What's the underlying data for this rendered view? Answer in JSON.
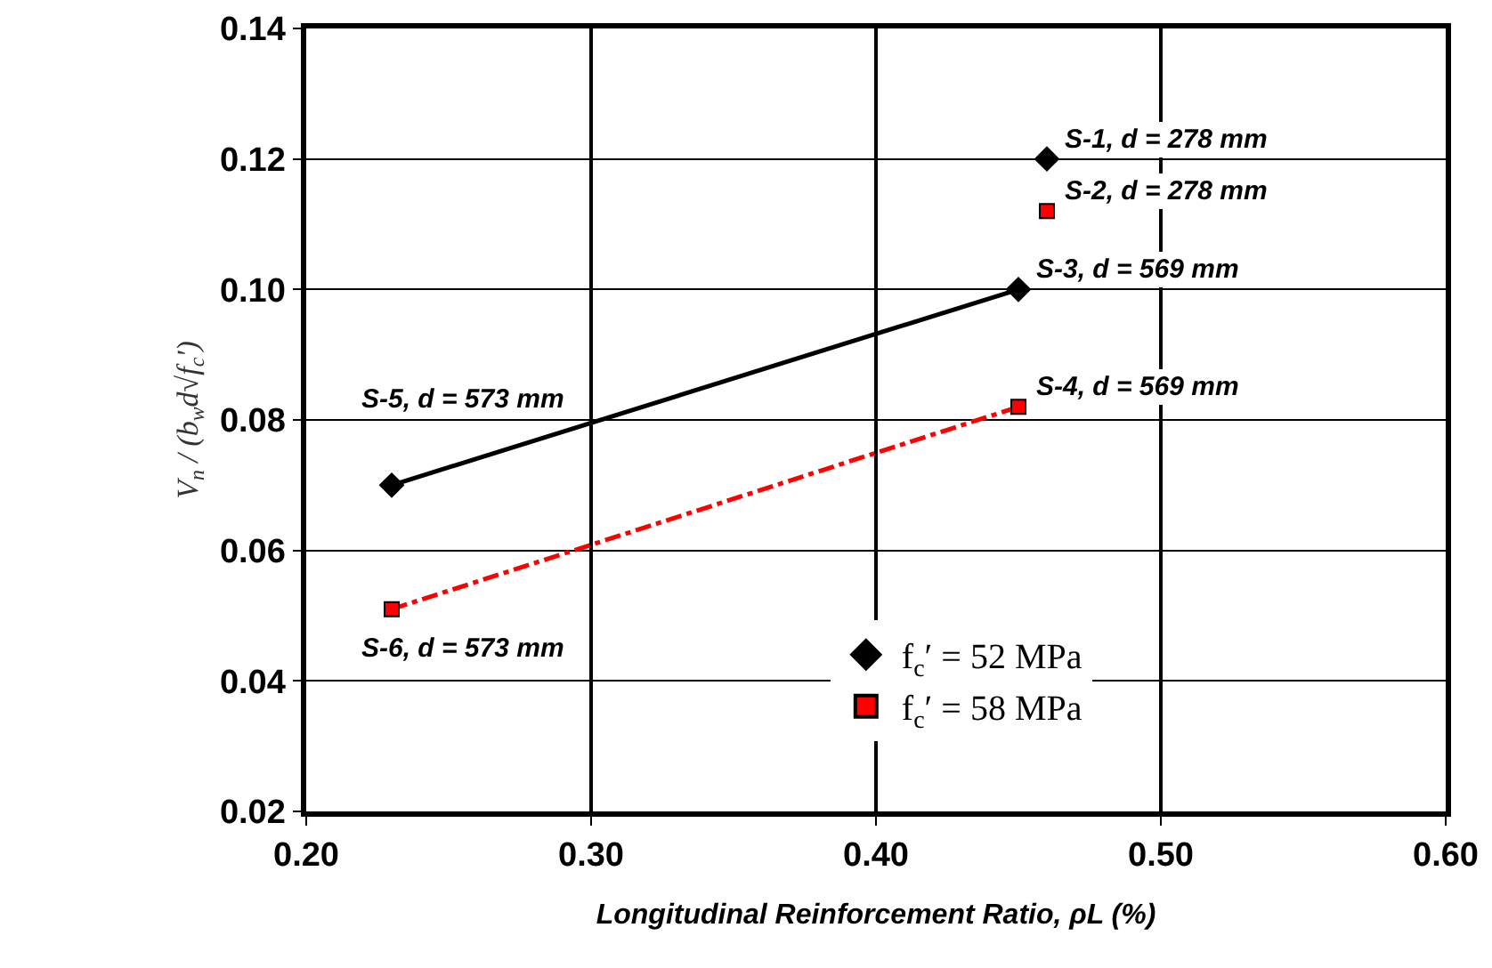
{
  "chart_data": {
    "type": "scatter",
    "xlabel": "Longitudinal Reinforcement Ratio, ρL (%)",
    "ylabel": "V$_{n}$ / (b$_{w}$d√f$_{c}$')",
    "xlim": [
      0.2,
      0.6
    ],
    "xticks": [
      {
        "value": 0.2,
        "label": "0.20"
      },
      {
        "value": 0.3,
        "label": "0.30"
      },
      {
        "value": 0.4,
        "label": "0.40"
      },
      {
        "value": 0.5,
        "label": "0.50"
      },
      {
        "value": 0.6,
        "label": "0.60"
      }
    ],
    "ylim": [
      0.02,
      0.14
    ],
    "yticks": [
      {
        "value": 0.02,
        "label": "0.02"
      },
      {
        "value": 0.04,
        "label": "0.04"
      },
      {
        "value": 0.06,
        "label": "0.06"
      },
      {
        "value": 0.08,
        "label": "0.08"
      },
      {
        "value": 0.1,
        "label": "0.10"
      },
      {
        "value": 0.12,
        "label": "0.12"
      },
      {
        "value": 0.14,
        "label": "0.14"
      }
    ],
    "grid": true,
    "legend": "bottom",
    "series": [
      {
        "type": "line",
        "x": [
          0.23,
          0.45
        ],
        "values": [
          0.07,
          0.1
        ],
        "color": "#000000",
        "line_style": "solid",
        "marker": "none"
      },
      {
        "type": "line",
        "x": [
          0.23,
          0.45
        ],
        "values": [
          0.051,
          0.082
        ],
        "color": "#ff0000",
        "line_style": "dashed",
        "marker": "none"
      },
      {
        "name": "f$_{c}$′ = 52 MPa",
        "x": [
          0.23,
          0.45,
          0.46
        ],
        "values": [
          0.07,
          0.1,
          0.12
        ],
        "color": "#000000",
        "marker": "diamond"
      },
      {
        "name": "f$_{c}$′ = 58 MPa",
        "x": [
          0.23,
          0.45,
          0.46
        ],
        "values": [
          0.051,
          0.082,
          0.112
        ],
        "color": "#ff0000",
        "marker": "square"
      }
    ],
    "annotations": [
      {
        "text": "S-1, d = 278 mm",
        "x": 0.46,
        "y": 0.12
      },
      {
        "text": "S-2, d = 278 mm",
        "x": 0.46,
        "y": 0.112
      },
      {
        "text": "S-3, d = 569 mm",
        "x": 0.45,
        "y": 0.1
      },
      {
        "text": "S-4, d = 569 mm",
        "x": 0.45,
        "y": 0.082
      },
      {
        "text": "S-5, d = 573 mm",
        "x": 0.23,
        "y": 0.07
      },
      {
        "text": "S-6, d = 573 mm",
        "x": 0.23,
        "y": 0.051
      }
    ]
  }
}
